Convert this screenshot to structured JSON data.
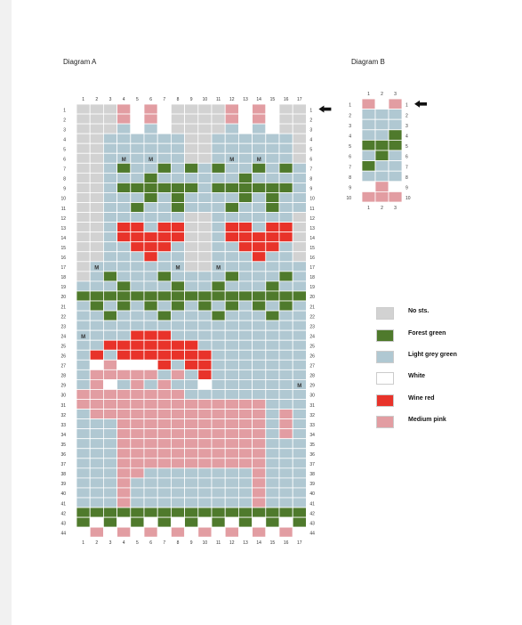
{
  "diagram_a": {
    "title": "Diagram A",
    "stitch_numbers": [
      "1",
      "2",
      "3",
      "4",
      "5",
      "6",
      "7",
      "8",
      "9",
      "10",
      "11",
      "12",
      "13",
      "14",
      "15",
      "16",
      "17"
    ],
    "row_numbers": [
      "1",
      "2",
      "3",
      "4",
      "5",
      "6",
      "7",
      "8",
      "9",
      "10",
      "11",
      "12",
      "13",
      "14",
      "15",
      "16",
      "17",
      "18",
      "19",
      "20",
      "21",
      "22",
      "23",
      "24",
      "25",
      "26",
      "27",
      "28",
      "29",
      "30",
      "31",
      "32",
      "33",
      "34",
      "35",
      "36",
      "37",
      "38",
      "39",
      "40",
      "41",
      "42",
      "43",
      "44"
    ],
    "rows": [
      "GGGPWPWGGGGPWPWGG",
      "GGGPWPWGGGGPWPWGG",
      "GGGLWLWGGGGLWLWGG",
      "GGLLLLLLGGLLLLLLG",
      "GGLLLLLLGGLLLLLLG",
      "GGLLLLLLGGLLLLLLG",
      "GGLFLLFLFLFLLFLFL",
      "GGLLLFLLLLLLFLLLL",
      "GGLFFFFFFLFFFFFFL",
      "GGLLLFLFLLLLFLFLL",
      "GGLLFLLFLLLFLLFLL",
      "GGLLLLLLGGLLLLLLG",
      "GGLRRLRRGGLRRLRRG",
      "GGLRRRRRGGLRRRRRG",
      "GGLLRRRLGGLLRRRLG",
      "GGLLLRLLGGLLLRLLG",
      "GLLLLLLLGGLLLLLLL",
      "GLFLLLFLLLLFLLLFL",
      "LLLFLLLFLLFLLLFLL",
      "FFFFFFFFFFFFFFFFF",
      "LFLFLFLFLFLFLFLFL",
      "LLFLLLFLLLFLLLFLL",
      "LLLLLLLLLLLLLLLLL",
      "LLLLRRRLLLLLLLLLL",
      "LLRRRRRRRLLLLLLLL",
      "LRLRRRRRRRLLLLLLL",
      "LWPWWWRLRRLLLLLLL",
      "LPPPPPLPLRLLLLLLL",
      "LPWLPLPLLWLLLLLLL",
      "PPPPPPPPLLLLLLLLL",
      "PPPPPPPPPPPPPPLLL",
      "LPPPPPPPPPPPPPLPL",
      "LLLPPPPPPPPPPPLPL",
      "LLLPPPPPPPPPPPLPL",
      "LLLPPPPPPPPPPPLLL",
      "LLLPPPPPPPPPPPLLL",
      "LLLPPPPPPPPPPPLLL",
      "LLLPPLLLLLLLLPLLL",
      "LLLPLLLLLLLLLPLLL",
      "LLLPLLLLLLLLLPLLL",
      "LLLPLLLLLLLLLPLLL",
      "FFFFFFFFFFFFFFFFF",
      "FWFWFWFWFWFWFWFWF",
      "WPWPWPWPWPWPWPWPW"
    ],
    "m_marks": [
      {
        "row": 6,
        "col": 4
      },
      {
        "row": 6,
        "col": 6
      },
      {
        "row": 6,
        "col": 12
      },
      {
        "row": 6,
        "col": 14
      },
      {
        "row": 17,
        "col": 2
      },
      {
        "row": 17,
        "col": 8
      },
      {
        "row": 17,
        "col": 11
      },
      {
        "row": 24,
        "col": 1
      },
      {
        "row": 29,
        "col": 17
      }
    ],
    "marker_label": "M",
    "start_row": "1"
  },
  "diagram_b": {
    "title": "Diagram B",
    "stitch_numbers": [
      "1",
      "2",
      "3"
    ],
    "row_numbers": [
      "1",
      "2",
      "3",
      "4",
      "5",
      "6",
      "7",
      "8",
      "9",
      "10"
    ],
    "rows": [
      "PWP",
      "LLL",
      "LLL",
      "LLF",
      "FFF",
      "LFL",
      "FLL",
      "LLL",
      "WPW",
      "PPP"
    ],
    "start_row": "1"
  },
  "legend": [
    {
      "key": "G",
      "label": "No sts.",
      "color": "#d2d2d2"
    },
    {
      "key": "F",
      "label": "Forest green",
      "color": "#4f7a2c"
    },
    {
      "key": "L",
      "label": "Light grey green",
      "color": "#b0c8d2"
    },
    {
      "key": "W",
      "label": "White",
      "color": "#ffffff"
    },
    {
      "key": "R",
      "label": "Wine red",
      "color": "#e8332a"
    },
    {
      "key": "P",
      "label": "Medium pink",
      "color": "#e29da2"
    }
  ],
  "arrow_icon": "left-arrow-icon"
}
